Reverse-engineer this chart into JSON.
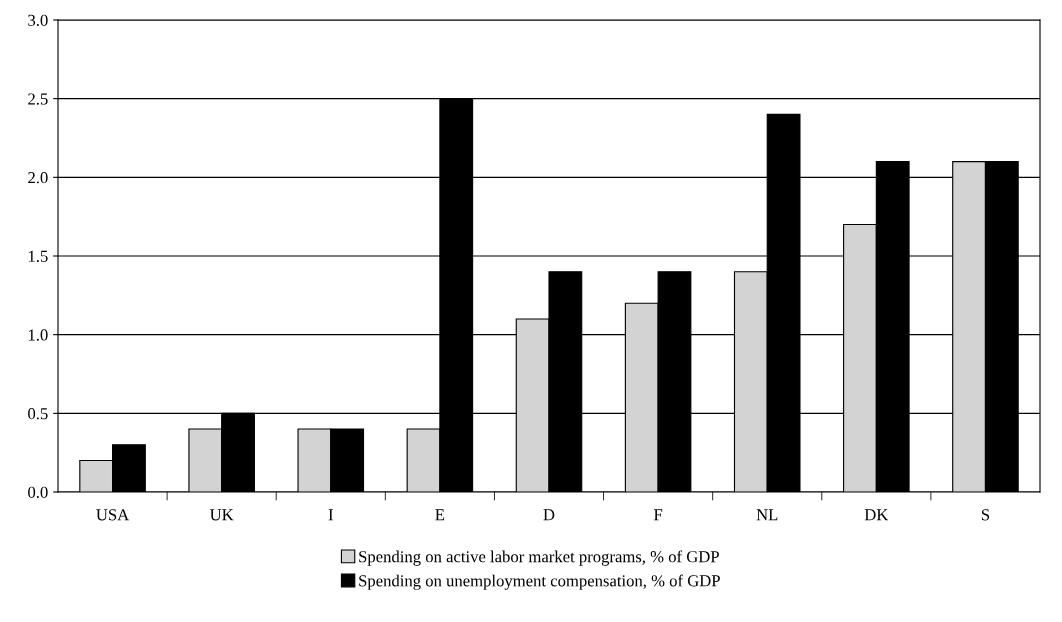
{
  "chart_data": {
    "type": "bar",
    "categories": [
      "USA",
      "UK",
      "I",
      "E",
      "D",
      "F",
      "NL",
      "DK",
      "S"
    ],
    "series": [
      {
        "name": "Spending on active labor market programs, % of GDP",
        "color": "#d3d3d3",
        "values": [
          0.2,
          0.4,
          0.4,
          0.4,
          1.1,
          1.2,
          1.4,
          1.7,
          2.1
        ]
      },
      {
        "name": "Spending on unemployment compensation, % of GDP",
        "color": "#000000",
        "values": [
          0.3,
          0.5,
          0.4,
          2.5,
          1.4,
          1.4,
          2.4,
          2.1,
          2.1
        ]
      }
    ],
    "ylim": [
      0,
      3.0
    ],
    "yticks": [
      {
        "value": 0,
        "label": "0.0"
      },
      {
        "value": 0.5,
        "label": "0.5"
      },
      {
        "value": 1.0,
        "label": "1.0"
      },
      {
        "value": 1.5,
        "label": "1.5"
      },
      {
        "value": 2.0,
        "label": "2.0"
      },
      {
        "value": 2.5,
        "label": "2.5"
      },
      {
        "value": 3.0,
        "label": "3.0"
      }
    ],
    "grid": "y",
    "legend": "bottom"
  }
}
